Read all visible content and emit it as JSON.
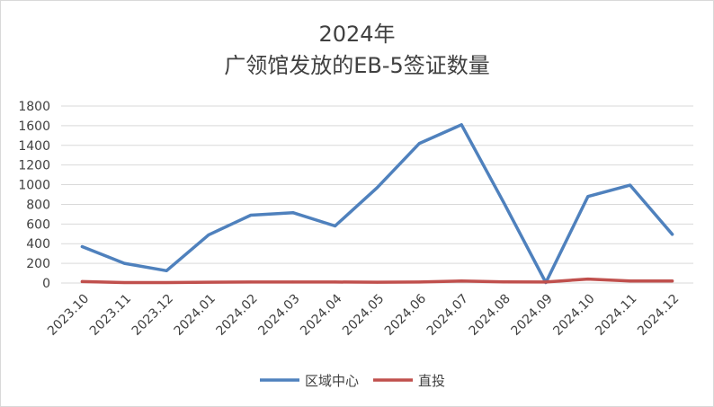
{
  "chart_data": {
    "type": "line",
    "title": "2024年",
    "subtitle": "广领馆发放的EB-5签证数量",
    "xlabel": "",
    "ylabel": "",
    "categories": [
      "2023.10",
      "2023.11",
      "2023.12",
      "2024.01",
      "2024.02",
      "2024.03",
      "2024.04",
      "2024.05",
      "2024.06",
      "2024.07",
      "2024.08",
      "2024.09",
      "2024.10",
      "2024.11",
      "2024.12"
    ],
    "ylim": [
      0,
      1800
    ],
    "yticks": [
      0,
      200,
      400,
      600,
      800,
      1000,
      1200,
      1400,
      1600,
      1800
    ],
    "grid": true,
    "legend_position": "bottom",
    "series": [
      {
        "name": "区域中心",
        "color": "#4f81bd",
        "values": [
          370,
          200,
          125,
          490,
          690,
          715,
          580,
          970,
          1420,
          1610,
          820,
          5,
          880,
          995,
          495
        ]
      },
      {
        "name": "直投",
        "color": "#c0504d",
        "values": [
          15,
          5,
          5,
          8,
          10,
          10,
          10,
          8,
          10,
          20,
          12,
          10,
          40,
          20,
          20
        ]
      }
    ]
  }
}
